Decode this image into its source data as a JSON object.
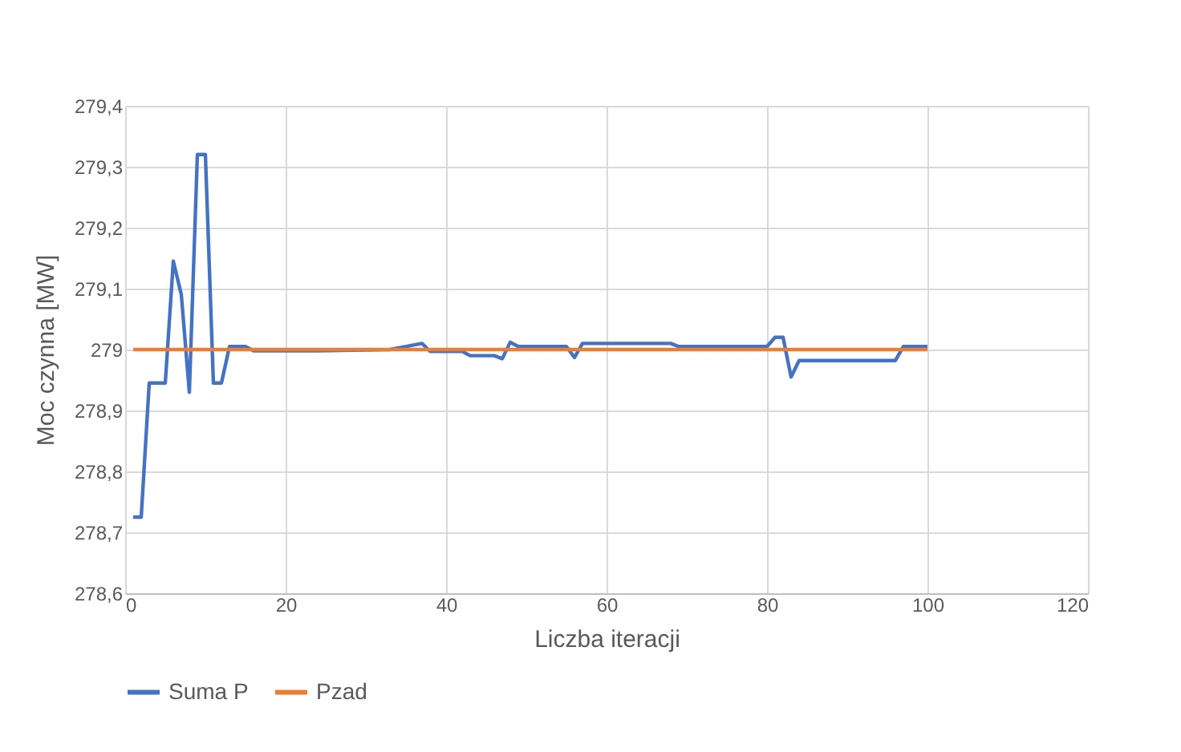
{
  "chart_data": {
    "type": "line",
    "xlabel": "Liczba iteracji",
    "ylabel": "Moc czynna [MW]",
    "xlim": [
      0,
      120
    ],
    "xticks": [
      0,
      20,
      40,
      60,
      80,
      100,
      120
    ],
    "ylim": [
      278.6,
      279.4
    ],
    "yticks": [
      {
        "value": 278.6,
        "label": "278,6"
      },
      {
        "value": 278.7,
        "label": "278,7"
      },
      {
        "value": 278.8,
        "label": "278,8"
      },
      {
        "value": 278.9,
        "label": "278,9"
      },
      {
        "value": 279,
        "label": "279"
      },
      {
        "value": 279.1,
        "label": "279,1"
      },
      {
        "value": 279.2,
        "label": "279,2"
      },
      {
        "value": 279.3,
        "label": "279,3"
      },
      {
        "value": 279.4,
        "label": "279,4"
      }
    ],
    "grid": true,
    "legend": "bottom",
    "marker": "none",
    "line_style": "solid",
    "series": [
      {
        "name": "Suma P",
        "color": "#4472c4",
        "x": [
          1,
          2,
          3,
          4,
          5,
          6,
          7,
          8,
          9,
          10,
          11,
          12,
          13,
          14,
          15,
          16,
          24,
          33,
          37,
          38,
          42,
          43,
          46,
          47,
          48,
          49,
          55,
          56,
          57,
          68,
          69,
          80,
          81,
          82,
          83,
          84,
          96,
          97,
          100
        ],
        "values": [
          278.725,
          278.725,
          278.945,
          278.945,
          278.945,
          279.145,
          279.09,
          278.93,
          279.32,
          279.32,
          278.945,
          278.945,
          279.005,
          279.005,
          279.005,
          278.998,
          278.998,
          279.0,
          279.01,
          278.997,
          278.997,
          278.99,
          278.99,
          278.985,
          279.012,
          279.005,
          279.005,
          278.987,
          279.01,
          279.01,
          279.005,
          279.005,
          279.02,
          279.02,
          278.955,
          278.982,
          278.982,
          279.005,
          279.005
        ]
      },
      {
        "name": "Pzad",
        "color": "#ed7d31",
        "x": [
          1,
          100
        ],
        "values": [
          279,
          279
        ]
      }
    ]
  }
}
